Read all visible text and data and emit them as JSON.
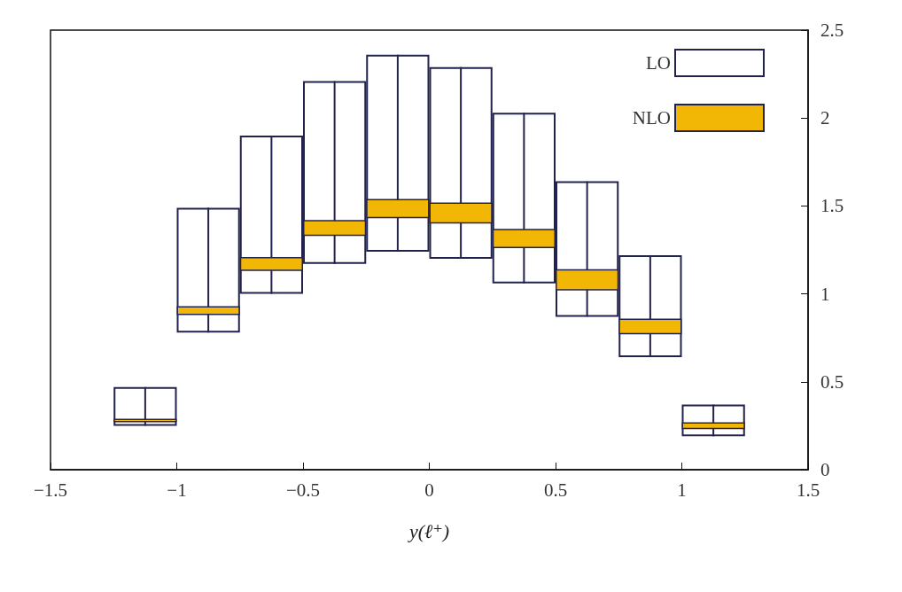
{
  "chart_data": {
    "type": "bar",
    "xlabel": "y(ℓ⁺)",
    "x": [
      -1.125,
      -0.875,
      -0.625,
      -0.375,
      -0.125,
      0.125,
      0.375,
      0.625,
      0.875,
      1.125
    ],
    "series": [
      {
        "name": "LO",
        "color": "#22224e",
        "base": [
          0.25,
          0.78,
          1.0,
          1.17,
          1.24,
          1.2,
          1.06,
          0.87,
          0.64,
          0.19
        ],
        "values": [
          0.22,
          0.71,
          0.9,
          1.04,
          1.12,
          1.09,
          0.97,
          0.77,
          0.58,
          0.18
        ],
        "errors": [
          [
            0.25,
            0.47
          ],
          [
            0.78,
            1.49
          ],
          [
            1.0,
            1.9
          ],
          [
            1.17,
            2.21
          ],
          [
            1.24,
            2.36
          ],
          [
            1.2,
            2.29
          ],
          [
            1.06,
            2.03
          ],
          [
            0.87,
            1.64
          ],
          [
            0.64,
            1.22
          ],
          [
            0.19,
            0.37
          ]
        ]
      },
      {
        "name": "NLO",
        "color": "#f2b705",
        "base": [
          0.27,
          0.88,
          1.13,
          1.33,
          1.43,
          1.4,
          1.26,
          1.02,
          0.77,
          0.23
        ],
        "values": [
          0.02,
          0.05,
          0.08,
          0.09,
          0.11,
          0.12,
          0.11,
          0.12,
          0.09,
          0.04
        ]
      }
    ],
    "xlim": [
      -1.5,
      1.5
    ],
    "xticks": [
      {
        "value": -1.5,
        "label": "−1.5"
      },
      {
        "value": -1,
        "label": "−1"
      },
      {
        "value": -0.5,
        "label": "−0.5"
      },
      0,
      0.5,
      1,
      1.5
    ],
    "ylim": [
      0,
      2.5
    ],
    "yticks": [
      0,
      0.5,
      1,
      1.5,
      2,
      2.5
    ],
    "legend": "top right"
  }
}
